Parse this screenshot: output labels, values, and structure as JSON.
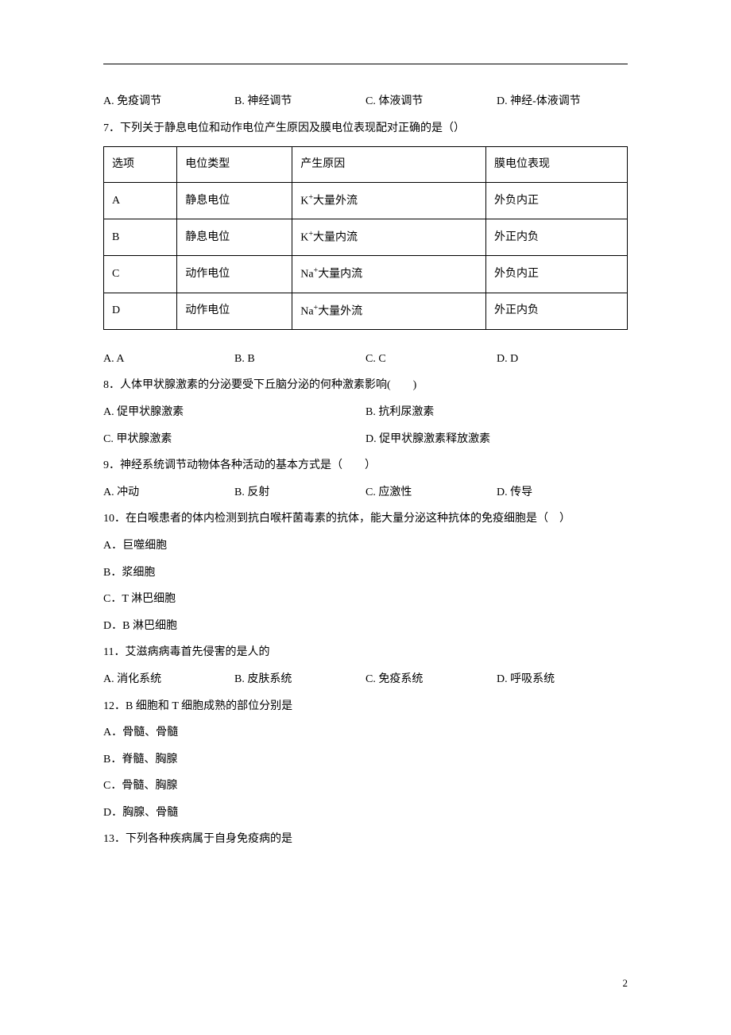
{
  "q6_options": {
    "a": "A. 免疫调节",
    "b": "B. 神经调节",
    "c": "C. 体液调节",
    "d": "D. 神经-体液调节"
  },
  "q7": {
    "stem": "7．下列关于静息电位和动作电位产生原因及膜电位表现配对正确的是（）",
    "table": {
      "header": [
        "选项",
        "电位类型",
        "产生原因",
        "膜电位表现"
      ],
      "rows": [
        [
          "A",
          "静息电位",
          "K⁺大量外流",
          "外负内正"
        ],
        [
          "B",
          "静息电位",
          "K⁺大量内流",
          "外正内负"
        ],
        [
          "C",
          "动作电位",
          "Na⁺大量内流",
          "外负内正"
        ],
        [
          "D",
          "动作电位",
          "Na⁺大量外流",
          "外正内负"
        ]
      ]
    },
    "options": {
      "a": "A. A",
      "b": "B. B",
      "c": "C. C",
      "d": "D. D"
    }
  },
  "q8": {
    "stem": "8．人体甲状腺激素的分泌要受下丘脑分泌的何种激素影响(　　)",
    "options": {
      "a": "A. 促甲状腺激素",
      "b": "B. 抗利尿激素",
      "c": "C. 甲状腺激素",
      "d": "D. 促甲状腺激素释放激素"
    }
  },
  "q9": {
    "stem": "9．神经系统调节动物体各种活动的基本方式是（　　）",
    "options": {
      "a": "A. 冲动",
      "b": "B. 反射",
      "c": "C. 应激性",
      "d": "D. 传导"
    }
  },
  "q10": {
    "stem": "10．在白喉患者的体内检测到抗白喉杆菌毒素的抗体，能大量分泌这种抗体的免疫细胞是（　）",
    "options": {
      "a": "A．巨噬细胞",
      "b": "B．浆细胞",
      "c": "C．T 淋巴细胞",
      "d": "D．B 淋巴细胞"
    }
  },
  "q11": {
    "stem": "11．艾滋病病毒首先侵害的是人的",
    "options": {
      "a": "A. 消化系统",
      "b": "B. 皮肤系统",
      "c": "C. 免疫系统",
      "d": "D. 呼吸系统"
    }
  },
  "q12": {
    "stem": "12．B 细胞和 T 细胞成熟的部位分别是",
    "options": {
      "a": "A．骨髓、骨髓",
      "b": "B．脊髓、胸腺",
      "c": "C．骨髓、胸腺",
      "d": "D．胸腺、骨髓"
    }
  },
  "q13": {
    "stem": "13．下列各种疾病属于自身免疫病的是"
  },
  "page_number": "2",
  "table_cells": {
    "r0c0": "选项",
    "r0c1": "电位类型",
    "r0c2": "产生原因",
    "r0c3": "膜电位表现",
    "r1c0": "A",
    "r1c1": "静息电位",
    "r1c3": "外负内正",
    "r2c0": "B",
    "r2c1": "静息电位",
    "r2c3": "外正内负",
    "r3c0": "C",
    "r3c1": "动作电位",
    "r3c3": "外负内正",
    "r4c0": "D",
    "r4c1": "动作电位",
    "r4c3": "外正内负"
  },
  "ion_labels": {
    "r1": {
      "pre": "K",
      "sup": "+",
      "post": "大量外流"
    },
    "r2": {
      "pre": "K",
      "sup": "+",
      "post": "大量内流"
    },
    "r3": {
      "pre": "Na",
      "sup": "+",
      "post": "大量内流"
    },
    "r4": {
      "pre": "Na",
      "sup": "+",
      "post": "大量外流"
    }
  }
}
